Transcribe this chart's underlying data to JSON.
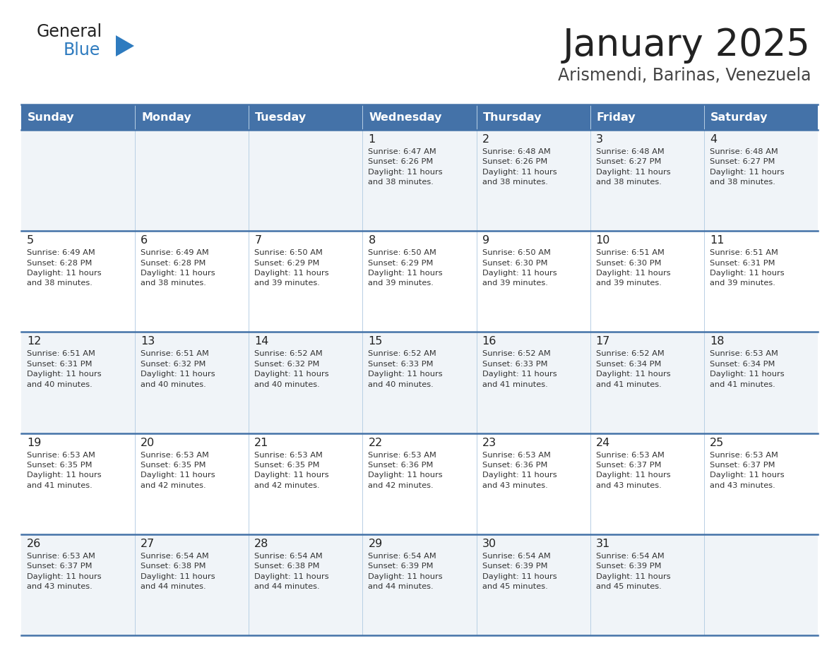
{
  "title": "January 2025",
  "subtitle": "Arismendi, Barinas, Venezuela",
  "header_bg": "#4472a8",
  "header_text_color": "#ffffff",
  "row_bg_odd": "#f0f4f8",
  "row_bg_even": "#ffffff",
  "border_color": "#4472a8",
  "cell_border_color": "#b0c4de",
  "day_headers": [
    "Sunday",
    "Monday",
    "Tuesday",
    "Wednesday",
    "Thursday",
    "Friday",
    "Saturday"
  ],
  "weeks": [
    [
      {
        "day": "",
        "info": ""
      },
      {
        "day": "",
        "info": ""
      },
      {
        "day": "",
        "info": ""
      },
      {
        "day": "1",
        "info": "Sunrise: 6:47 AM\nSunset: 6:26 PM\nDaylight: 11 hours\nand 38 minutes."
      },
      {
        "day": "2",
        "info": "Sunrise: 6:48 AM\nSunset: 6:26 PM\nDaylight: 11 hours\nand 38 minutes."
      },
      {
        "day": "3",
        "info": "Sunrise: 6:48 AM\nSunset: 6:27 PM\nDaylight: 11 hours\nand 38 minutes."
      },
      {
        "day": "4",
        "info": "Sunrise: 6:48 AM\nSunset: 6:27 PM\nDaylight: 11 hours\nand 38 minutes."
      }
    ],
    [
      {
        "day": "5",
        "info": "Sunrise: 6:49 AM\nSunset: 6:28 PM\nDaylight: 11 hours\nand 38 minutes."
      },
      {
        "day": "6",
        "info": "Sunrise: 6:49 AM\nSunset: 6:28 PM\nDaylight: 11 hours\nand 38 minutes."
      },
      {
        "day": "7",
        "info": "Sunrise: 6:50 AM\nSunset: 6:29 PM\nDaylight: 11 hours\nand 39 minutes."
      },
      {
        "day": "8",
        "info": "Sunrise: 6:50 AM\nSunset: 6:29 PM\nDaylight: 11 hours\nand 39 minutes."
      },
      {
        "day": "9",
        "info": "Sunrise: 6:50 AM\nSunset: 6:30 PM\nDaylight: 11 hours\nand 39 minutes."
      },
      {
        "day": "10",
        "info": "Sunrise: 6:51 AM\nSunset: 6:30 PM\nDaylight: 11 hours\nand 39 minutes."
      },
      {
        "day": "11",
        "info": "Sunrise: 6:51 AM\nSunset: 6:31 PM\nDaylight: 11 hours\nand 39 minutes."
      }
    ],
    [
      {
        "day": "12",
        "info": "Sunrise: 6:51 AM\nSunset: 6:31 PM\nDaylight: 11 hours\nand 40 minutes."
      },
      {
        "day": "13",
        "info": "Sunrise: 6:51 AM\nSunset: 6:32 PM\nDaylight: 11 hours\nand 40 minutes."
      },
      {
        "day": "14",
        "info": "Sunrise: 6:52 AM\nSunset: 6:32 PM\nDaylight: 11 hours\nand 40 minutes."
      },
      {
        "day": "15",
        "info": "Sunrise: 6:52 AM\nSunset: 6:33 PM\nDaylight: 11 hours\nand 40 minutes."
      },
      {
        "day": "16",
        "info": "Sunrise: 6:52 AM\nSunset: 6:33 PM\nDaylight: 11 hours\nand 41 minutes."
      },
      {
        "day": "17",
        "info": "Sunrise: 6:52 AM\nSunset: 6:34 PM\nDaylight: 11 hours\nand 41 minutes."
      },
      {
        "day": "18",
        "info": "Sunrise: 6:53 AM\nSunset: 6:34 PM\nDaylight: 11 hours\nand 41 minutes."
      }
    ],
    [
      {
        "day": "19",
        "info": "Sunrise: 6:53 AM\nSunset: 6:35 PM\nDaylight: 11 hours\nand 41 minutes."
      },
      {
        "day": "20",
        "info": "Sunrise: 6:53 AM\nSunset: 6:35 PM\nDaylight: 11 hours\nand 42 minutes."
      },
      {
        "day": "21",
        "info": "Sunrise: 6:53 AM\nSunset: 6:35 PM\nDaylight: 11 hours\nand 42 minutes."
      },
      {
        "day": "22",
        "info": "Sunrise: 6:53 AM\nSunset: 6:36 PM\nDaylight: 11 hours\nand 42 minutes."
      },
      {
        "day": "23",
        "info": "Sunrise: 6:53 AM\nSunset: 6:36 PM\nDaylight: 11 hours\nand 43 minutes."
      },
      {
        "day": "24",
        "info": "Sunrise: 6:53 AM\nSunset: 6:37 PM\nDaylight: 11 hours\nand 43 minutes."
      },
      {
        "day": "25",
        "info": "Sunrise: 6:53 AM\nSunset: 6:37 PM\nDaylight: 11 hours\nand 43 minutes."
      }
    ],
    [
      {
        "day": "26",
        "info": "Sunrise: 6:53 AM\nSunset: 6:37 PM\nDaylight: 11 hours\nand 43 minutes."
      },
      {
        "day": "27",
        "info": "Sunrise: 6:54 AM\nSunset: 6:38 PM\nDaylight: 11 hours\nand 44 minutes."
      },
      {
        "day": "28",
        "info": "Sunrise: 6:54 AM\nSunset: 6:38 PM\nDaylight: 11 hours\nand 44 minutes."
      },
      {
        "day": "29",
        "info": "Sunrise: 6:54 AM\nSunset: 6:39 PM\nDaylight: 11 hours\nand 44 minutes."
      },
      {
        "day": "30",
        "info": "Sunrise: 6:54 AM\nSunset: 6:39 PM\nDaylight: 11 hours\nand 45 minutes."
      },
      {
        "day": "31",
        "info": "Sunrise: 6:54 AM\nSunset: 6:39 PM\nDaylight: 11 hours\nand 45 minutes."
      },
      {
        "day": "",
        "info": ""
      }
    ]
  ],
  "fig_width": 11.88,
  "fig_height": 9.18,
  "dpi": 100
}
